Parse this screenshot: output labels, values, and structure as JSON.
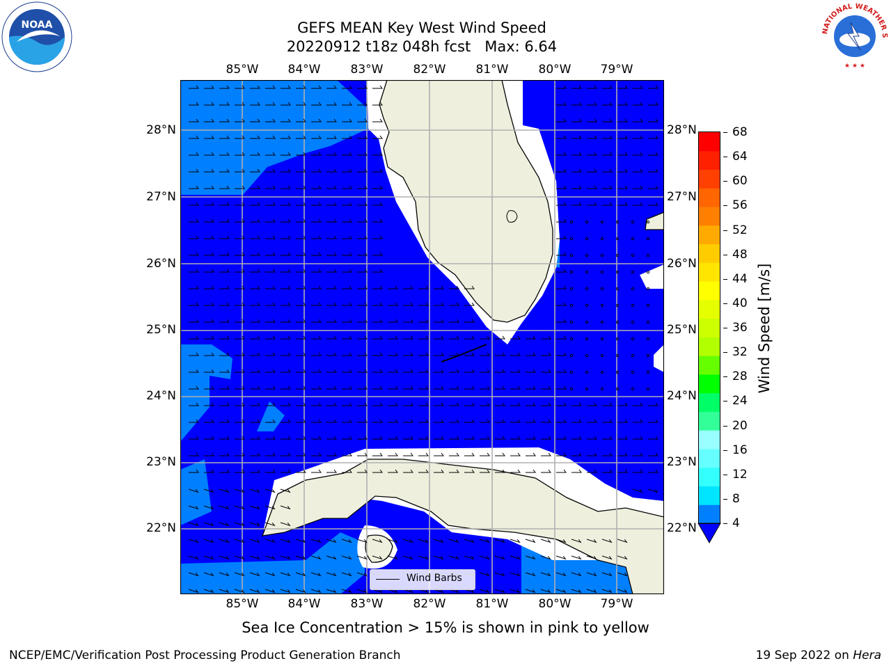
{
  "title_line1": "GEFS MEAN Key West Wind Speed",
  "title_line2": "20220912 t18z 048h fcst   Max: 6.64",
  "x_ticks": [
    "85°W",
    "84°W",
    "83°W",
    "82°W",
    "81°W",
    "80°W",
    "79°W"
  ],
  "y_ticks": [
    "28°N",
    "27°N",
    "26°N",
    "25°N",
    "24°N",
    "23°N",
    "22°N"
  ],
  "colorbar": {
    "label": "Wind Speed [m/s]",
    "tick_labels": [
      "68",
      "64",
      "60",
      "56",
      "52",
      "48",
      "44",
      "40",
      "36",
      "32",
      "28",
      "24",
      "20",
      "16",
      "12",
      "8",
      "4"
    ],
    "colors": [
      "#0000ff",
      "#0080ff",
      "#00e5ff",
      "#33ffff",
      "#66ffff",
      "#99ffff",
      "#33ff99",
      "#00ff66",
      "#00ff00",
      "#66ff00",
      "#b2ff00",
      "#ccff00",
      "#e5ff00",
      "#ffff00",
      "#ffe500",
      "#ffcc00",
      "#ffaa00",
      "#ff8000",
      "#ff6600",
      "#ff4000",
      "#ff2000",
      "#ff0000"
    ]
  },
  "legend_label": "Wind Barbs",
  "note": "Sea Ice Concentration > 15% is shown in pink to yellow",
  "footer_left": "NCEP/EMC/Verification Post Processing Product Generation Branch",
  "footer_date": "19 Sep 2022 on ",
  "footer_host": "Hera",
  "logos": {
    "left": "NOAA",
    "right": "NATIONAL WEATHER SERVICE"
  },
  "map_colors": {
    "ocean_low": "#0000ff",
    "ocean_mid": "#0080ff",
    "ocean_high": "#33bbff",
    "land": "#efefde",
    "mask": "#ffffff",
    "grid": "#b0b0b0"
  }
}
